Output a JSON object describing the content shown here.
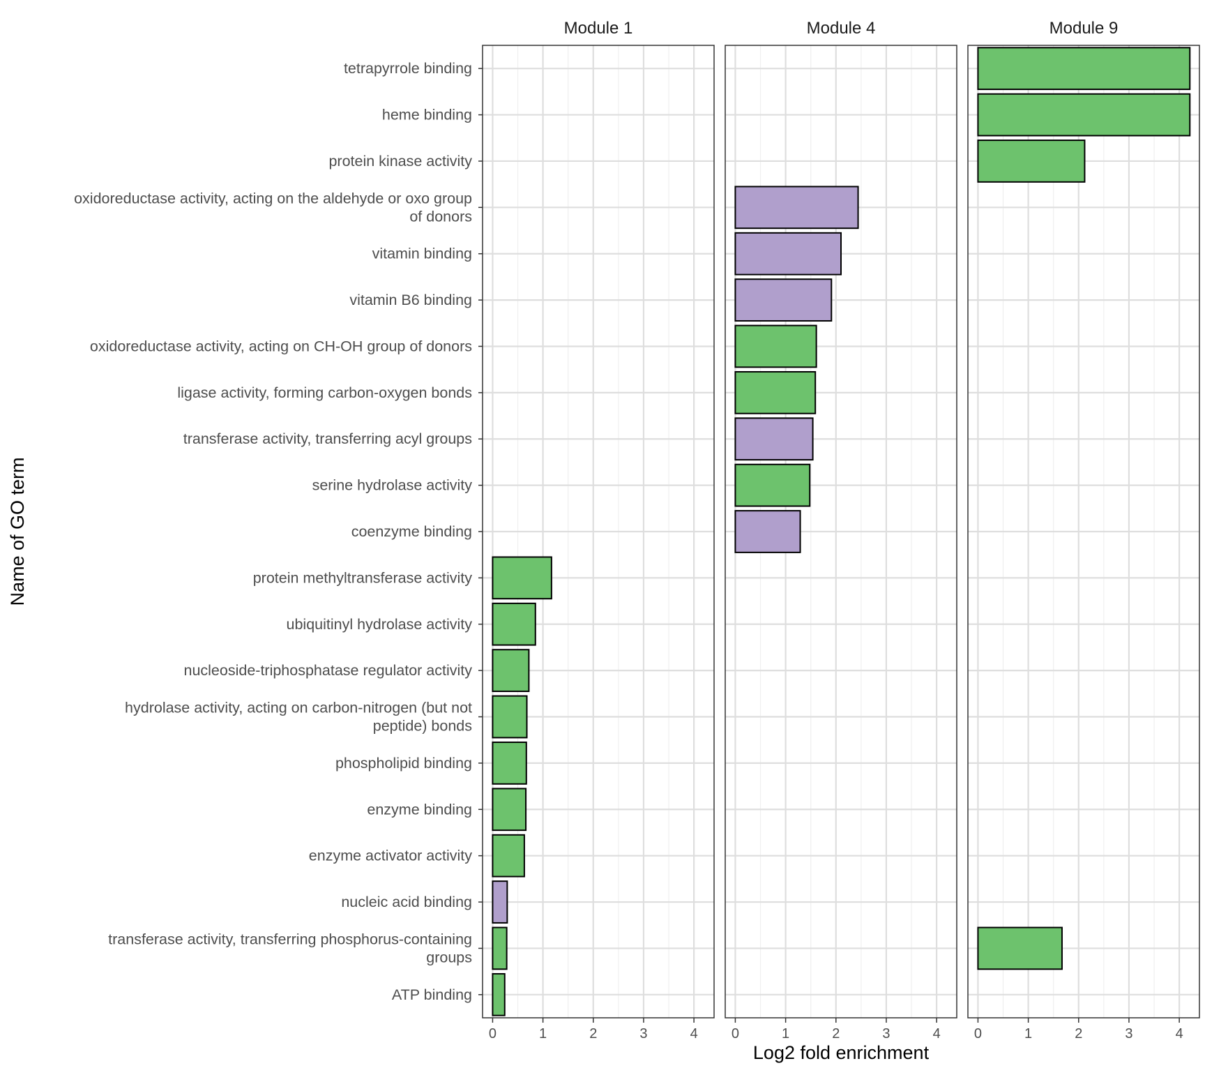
{
  "chart_data": {
    "type": "bar",
    "orientation": "horizontal",
    "title": "",
    "xlabel": "Log2 fold enrichment",
    "ylabel": "Name of GO term",
    "xlim": [
      -0.2,
      4.4
    ],
    "xticks": [
      0,
      1,
      2,
      3,
      4
    ],
    "grid": true,
    "categories": [
      "tetrapyrrole binding",
      "heme binding",
      "protein kinase activity",
      "oxidoreductase activity, acting on the aldehyde or oxo group\nof donors",
      "vitamin binding",
      "vitamin B6 binding",
      "oxidoreductase activity, acting on CH-OH group of donors",
      "ligase activity, forming carbon-oxygen bonds",
      "transferase activity, transferring acyl groups",
      "serine hydrolase activity",
      "coenzyme binding",
      "protein methyltransferase activity",
      "ubiquitinyl hydrolase activity",
      "nucleoside-triphosphatase regulator activity",
      "hydrolase activity, acting on carbon-nitrogen (but not\npeptide) bonds",
      "phospholipid binding",
      "enzyme binding",
      "enzyme activator activity",
      "nucleic acid binding",
      "transferase activity, transferring phosphorus-containing\ngroups",
      "ATP binding"
    ],
    "colors": {
      "green": "#6DC26D",
      "purple": "#B09FCC",
      "bar_outline": "#000000",
      "grid_major": "#DEDEDE",
      "grid_minor": "#EFEFEF",
      "panel_border": "#333333"
    },
    "panels": [
      {
        "name": "Module 1",
        "bars": [
          {
            "category": "protein methyltransferase activity",
            "value": 1.17,
            "color": "green"
          },
          {
            "category": "ubiquitinyl hydrolase activity",
            "value": 0.85,
            "color": "green"
          },
          {
            "category": "nucleoside-triphosphatase regulator activity",
            "value": 0.72,
            "color": "green"
          },
          {
            "category": "hydrolase activity, acting on carbon-nitrogen (but not\npeptide) bonds",
            "value": 0.68,
            "color": "green"
          },
          {
            "category": "phospholipid binding",
            "value": 0.67,
            "color": "green"
          },
          {
            "category": "enzyme binding",
            "value": 0.66,
            "color": "green"
          },
          {
            "category": "enzyme activator activity",
            "value": 0.63,
            "color": "green"
          },
          {
            "category": "nucleic acid binding",
            "value": 0.29,
            "color": "purple"
          },
          {
            "category": "transferase activity, transferring phosphorus-containing\ngroups",
            "value": 0.28,
            "color": "green"
          },
          {
            "category": "ATP binding",
            "value": 0.24,
            "color": "green"
          }
        ]
      },
      {
        "name": "Module 4",
        "bars": [
          {
            "category": "oxidoreductase activity, acting on the aldehyde or oxo group\nof donors",
            "value": 2.44,
            "color": "purple"
          },
          {
            "category": "vitamin binding",
            "value": 2.1,
            "color": "purple"
          },
          {
            "category": "vitamin B6 binding",
            "value": 1.91,
            "color": "purple"
          },
          {
            "category": "oxidoreductase activity, acting on CH-OH group of donors",
            "value": 1.61,
            "color": "green"
          },
          {
            "category": "ligase activity, forming carbon-oxygen bonds",
            "value": 1.59,
            "color": "green"
          },
          {
            "category": "transferase activity, transferring acyl groups",
            "value": 1.54,
            "color": "purple"
          },
          {
            "category": "serine hydrolase activity",
            "value": 1.48,
            "color": "green"
          },
          {
            "category": "coenzyme binding",
            "value": 1.29,
            "color": "purple"
          }
        ]
      },
      {
        "name": "Module 9",
        "bars": [
          {
            "category": "tetrapyrrole binding",
            "value": 4.21,
            "color": "green"
          },
          {
            "category": "heme binding",
            "value": 4.21,
            "color": "green"
          },
          {
            "category": "protein kinase activity",
            "value": 2.12,
            "color": "green"
          },
          {
            "category": "transferase activity, transferring phosphorus-containing\ngroups",
            "value": 1.67,
            "color": "green"
          }
        ]
      }
    ]
  }
}
